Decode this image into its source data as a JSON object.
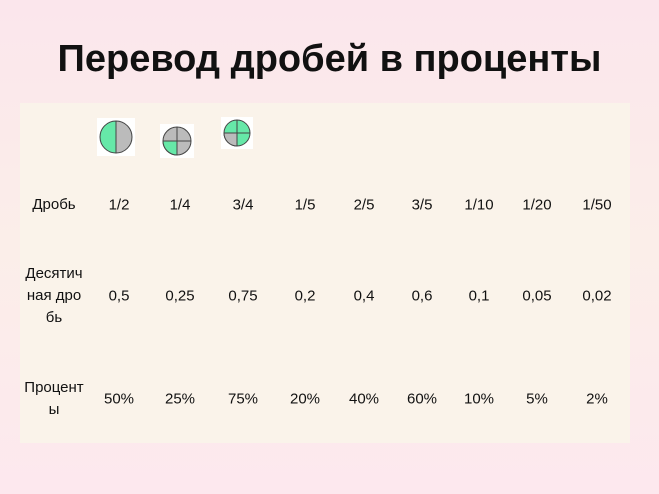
{
  "title": "Перевод дробей в проценты",
  "table": {
    "rows": [
      [
        "Дробь",
        "1/2",
        "1/4",
        "3/4",
        "1/5",
        "2/5",
        "3/5",
        "1/10",
        "1/20",
        "1/50"
      ],
      [
        "Десятичная дробь",
        "0,5",
        "0,25",
        "0,75",
        "0,2",
        "0,4",
        "0,6",
        "0,1",
        "0,05",
        "0,02"
      ],
      [
        "Проценты",
        "50%",
        "25%",
        "75%",
        "20%",
        "40%",
        "60%",
        "10%",
        "5%",
        "2%"
      ]
    ]
  }
}
